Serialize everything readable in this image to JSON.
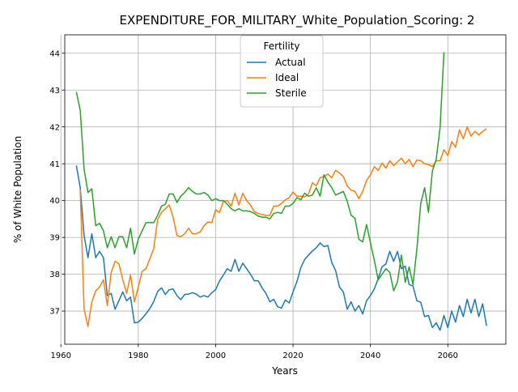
{
  "chart_data": {
    "type": "line",
    "title": "EXPENDITURE_FOR_MILITARY_White_Population_Scoring: 2",
    "xlabel": "Years",
    "ylabel": "% of White Population",
    "xlim": [
      1961,
      2075
    ],
    "ylim": [
      36.1,
      44.5
    ],
    "xticks": [
      1960,
      1980,
      2000,
      2020,
      2040,
      2060
    ],
    "yticks": [
      37,
      38,
      39,
      40,
      41,
      42,
      43,
      44
    ],
    "grid": true,
    "legend": {
      "title": "Fertility",
      "placement": "upper-center"
    },
    "series": [
      {
        "name": "Actual",
        "color": "#1f77b4",
        "x": [
          1964,
          1965,
          1966,
          1967,
          1968,
          1969,
          1970,
          1971,
          1972,
          1973,
          1974,
          1975,
          1976,
          1977,
          1978,
          1979,
          1980,
          1981,
          1982,
          1983,
          1984,
          1985,
          1986,
          1987,
          1988,
          1989,
          1990,
          1991,
          1992,
          1993,
          1994,
          1995,
          1996,
          1997,
          1998,
          1999,
          2000,
          2001,
          2002,
          2003,
          2004,
          2005,
          2006,
          2007,
          2008,
          2009,
          2010,
          2011,
          2012,
          2013,
          2014,
          2015,
          2016,
          2017,
          2018,
          2019,
          2020,
          2021,
          2022,
          2023,
          2024,
          2025,
          2026,
          2027,
          2028,
          2029,
          2030,
          2031,
          2032,
          2033,
          2034,
          2035,
          2036,
          2037,
          2038,
          2039,
          2040,
          2041,
          2042,
          2043,
          2044,
          2045,
          2046,
          2047,
          2048,
          2049,
          2050,
          2051,
          2052,
          2053,
          2054,
          2055,
          2056,
          2057,
          2058,
          2059,
          2060,
          2061,
          2062,
          2063,
          2064,
          2065,
          2066,
          2067,
          2068,
          2069,
          2070
        ],
        "values": [
          40.95,
          40.35,
          39.05,
          38.45,
          39.1,
          38.45,
          38.62,
          38.45,
          37.42,
          37.48,
          37.05,
          37.28,
          37.52,
          37.28,
          37.38,
          36.68,
          36.7,
          36.8,
          36.93,
          37.07,
          37.26,
          37.53,
          37.63,
          37.45,
          37.58,
          37.6,
          37.42,
          37.31,
          37.45,
          37.46,
          37.5,
          37.46,
          37.38,
          37.42,
          37.38,
          37.5,
          37.58,
          37.82,
          37.98,
          38.15,
          38.08,
          38.4,
          38.08,
          38.3,
          38.15,
          38.0,
          37.82,
          37.82,
          37.63,
          37.48,
          37.25,
          37.32,
          37.12,
          37.08,
          37.3,
          37.22,
          37.52,
          37.8,
          38.18,
          38.4,
          38.52,
          38.63,
          38.72,
          38.85,
          38.75,
          38.78,
          38.32,
          38.1,
          37.65,
          37.52,
          37.05,
          37.25,
          37.0,
          37.15,
          36.92,
          37.28,
          37.42,
          37.6,
          37.88,
          38.2,
          38.28,
          38.62,
          38.35,
          38.62,
          38.15,
          38.22,
          37.72,
          37.68,
          37.28,
          37.24,
          36.85,
          36.88,
          36.55,
          36.68,
          36.48,
          36.88,
          36.55,
          37.0,
          36.7,
          37.15,
          36.85,
          37.32,
          36.95,
          37.32,
          36.85,
          37.2,
          36.6
        ]
      },
      {
        "name": "Ideal",
        "color": "#ff7f0e",
        "x": [
          1965,
          1966,
          1967,
          1968,
          1969,
          1970,
          1971,
          1972,
          1973,
          1974,
          1975,
          1976,
          1977,
          1978,
          1979,
          1980,
          1981,
          1982,
          1983,
          1984,
          1985,
          1986,
          1987,
          1988,
          1989,
          1990,
          1991,
          1992,
          1993,
          1994,
          1995,
          1996,
          1997,
          1998,
          1999,
          2000,
          2001,
          2002,
          2003,
          2004,
          2005,
          2006,
          2007,
          2008,
          2009,
          2010,
          2011,
          2012,
          2013,
          2014,
          2015,
          2016,
          2017,
          2018,
          2019,
          2020,
          2021,
          2022,
          2023,
          2024,
          2025,
          2026,
          2027,
          2028,
          2029,
          2030,
          2031,
          2032,
          2033,
          2034,
          2035,
          2036,
          2037,
          2038,
          2039,
          2040,
          2041,
          2042,
          2043,
          2044,
          2045,
          2046,
          2047,
          2048,
          2049,
          2050,
          2051,
          2052,
          2053,
          2054,
          2055,
          2056,
          2057,
          2058,
          2059,
          2060,
          2061,
          2062,
          2063,
          2064,
          2065,
          2066,
          2067,
          2068,
          2069,
          2070
        ],
        "values": [
          40.3,
          37.05,
          36.58,
          37.25,
          37.55,
          37.65,
          37.85,
          37.15,
          38.05,
          38.35,
          38.28,
          37.85,
          37.48,
          37.98,
          37.25,
          37.65,
          38.08,
          38.15,
          38.42,
          38.7,
          39.48,
          39.68,
          39.78,
          39.88,
          39.55,
          39.05,
          39.02,
          39.1,
          39.25,
          39.1,
          39.1,
          39.15,
          39.32,
          39.42,
          39.4,
          39.75,
          39.68,
          39.98,
          40.0,
          39.85,
          40.2,
          39.88,
          40.2,
          40.0,
          39.88,
          39.7,
          39.65,
          39.62,
          39.6,
          39.6,
          39.85,
          39.85,
          39.92,
          40.02,
          40.08,
          40.23,
          40.12,
          40.12,
          40.1,
          40.18,
          40.48,
          40.4,
          40.62,
          40.65,
          40.72,
          40.62,
          40.82,
          40.75,
          40.65,
          40.4,
          40.28,
          40.25,
          40.05,
          40.25,
          40.55,
          40.7,
          40.92,
          40.82,
          41.02,
          40.88,
          41.08,
          40.95,
          41.05,
          41.15,
          41.0,
          41.12,
          40.92,
          41.1,
          41.08,
          41.0,
          40.98,
          40.92,
          41.08,
          41.08,
          41.38,
          41.22,
          41.6,
          41.45,
          41.92,
          41.68,
          42.0,
          41.75,
          41.88,
          41.78,
          41.88,
          41.95
        ]
      },
      {
        "name": "Sterile",
        "color": "#2ca02c",
        "x": [
          1964,
          1965,
          1966,
          1967,
          1968,
          1969,
          1970,
          1971,
          1972,
          1973,
          1974,
          1975,
          1976,
          1977,
          1978,
          1979,
          1980,
          1981,
          1982,
          1983,
          1984,
          1985,
          1986,
          1987,
          1988,
          1989,
          1990,
          1991,
          1992,
          1993,
          1994,
          1995,
          1996,
          1997,
          1998,
          1999,
          2000,
          2001,
          2002,
          2003,
          2004,
          2005,
          2006,
          2007,
          2008,
          2009,
          2010,
          2011,
          2012,
          2013,
          2014,
          2015,
          2016,
          2017,
          2018,
          2019,
          2020,
          2021,
          2022,
          2023,
          2024,
          2025,
          2026,
          2027,
          2028,
          2029,
          2030,
          2031,
          2032,
          2033,
          2034,
          2035,
          2036,
          2037,
          2038,
          2039,
          2040,
          2041,
          2042,
          2043,
          2044,
          2045,
          2046,
          2047,
          2048,
          2049,
          2050,
          2051,
          2052,
          2053,
          2054,
          2055,
          2056,
          2057,
          2058,
          2059
        ],
        "values": [
          42.95,
          42.45,
          40.85,
          40.22,
          40.32,
          39.32,
          39.38,
          39.18,
          38.72,
          39.02,
          38.72,
          39.02,
          39.02,
          38.72,
          39.25,
          38.55,
          38.95,
          39.18,
          39.4,
          39.4,
          39.4,
          39.6,
          39.85,
          39.9,
          40.18,
          40.18,
          39.95,
          40.12,
          40.22,
          40.35,
          40.25,
          40.18,
          40.18,
          40.22,
          40.15,
          40.0,
          40.05,
          40.0,
          40.0,
          39.9,
          39.78,
          39.72,
          39.78,
          39.72,
          39.72,
          39.7,
          39.65,
          39.58,
          39.55,
          39.55,
          39.5,
          39.65,
          39.68,
          39.65,
          39.85,
          39.85,
          39.92,
          40.08,
          40.02,
          40.2,
          40.12,
          40.15,
          40.35,
          40.12,
          40.7,
          40.5,
          40.35,
          40.15,
          40.2,
          40.25,
          39.98,
          39.6,
          39.52,
          38.95,
          38.88,
          39.35,
          38.85,
          38.38,
          37.85,
          38.0,
          38.15,
          38.05,
          37.55,
          37.8,
          38.52,
          37.78,
          38.2,
          37.72,
          38.68,
          39.92,
          40.35,
          39.68,
          40.8,
          41.12,
          41.98,
          44.03
        ]
      }
    ]
  }
}
